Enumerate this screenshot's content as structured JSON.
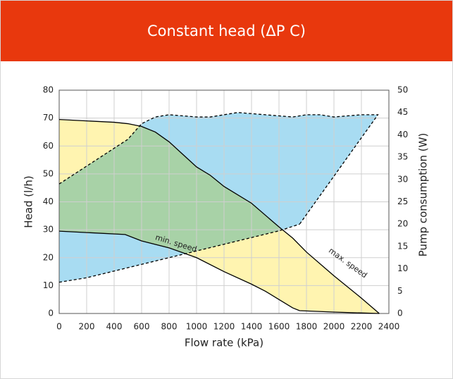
{
  "header": {
    "title": "Constant head (ΔP C)"
  },
  "chart_data": {
    "type": "line",
    "xlabel": "Flow rate (kPa)",
    "ylabel": "Head (l/h)",
    "y2label": "Pump consumption (W)",
    "xlim": [
      0,
      2400
    ],
    "xticks": [
      0,
      200,
      400,
      600,
      800,
      1000,
      1200,
      1400,
      1600,
      1800,
      2000,
      2200,
      2400
    ],
    "ylim": [
      0,
      80
    ],
    "yticks": [
      0,
      10,
      20,
      30,
      40,
      50,
      60,
      70,
      80
    ],
    "y2lim": [
      0,
      50
    ],
    "y2ticks": [
      0,
      5,
      10,
      15,
      20,
      25,
      30,
      35,
      40,
      45,
      50
    ],
    "grid": true,
    "series": [
      {
        "color": "#000000",
        "dash": false,
        "axis": "y",
        "x": [
          0,
          200,
          400,
          500,
          600,
          700,
          800,
          900,
          1000,
          1100,
          1200,
          1400,
          1600,
          1700,
          1800,
          2000,
          2200,
          2330
        ],
        "values": [
          69.5,
          69,
          68.5,
          68,
          67,
          65,
          61.5,
          57,
          52.5,
          49.5,
          45.5,
          39.5,
          31,
          27,
          22,
          13.5,
          5.5,
          0
        ]
      },
      {
        "color": "#000000",
        "dash": false,
        "axis": "y",
        "x": [
          0,
          200,
          480,
          600,
          800,
          1000,
          1200,
          1400,
          1500,
          1600,
          1700,
          1750,
          2000,
          2330
        ],
        "values": [
          29.5,
          29,
          28.3,
          26,
          23.5,
          20,
          15,
          10.5,
          8,
          5,
          2,
          1,
          0.5,
          0
        ]
      },
      {
        "color": "#000000",
        "dash": true,
        "axis": "y2",
        "x": [
          0,
          200,
          400,
          500,
          600,
          700,
          800,
          1000,
          1100,
          1200,
          1300,
          1500,
          1700,
          1800,
          1900,
          2000,
          2200,
          2320,
          1750
        ],
        "values": [
          29,
          33,
          37,
          39,
          42.5,
          44,
          44.5,
          44,
          44,
          44.5,
          45,
          44.5,
          44,
          44.5,
          44.5,
          44,
          44.5,
          44.5,
          20
        ]
      },
      {
        "color": "#000000",
        "dash": true,
        "axis": "y2",
        "x": [
          0,
          200,
          400,
          600,
          800,
          1000,
          1200,
          1400,
          1600,
          1750
        ],
        "values": [
          7,
          8,
          9.5,
          11,
          12.5,
          14,
          15.5,
          17,
          18.5,
          20
        ]
      }
    ],
    "areas": [
      {
        "series": [
          0,
          1
        ],
        "color": "#fff4b0"
      },
      {
        "series": [
          2,
          3
        ],
        "color": "#a8dcf2"
      }
    ],
    "annotations": [
      {
        "text": "min. speed",
        "x": 850,
        "y": 25,
        "angle": 17
      },
      {
        "text": "max. speed",
        "x": 2100,
        "y": 18,
        "angle": 36
      }
    ]
  }
}
